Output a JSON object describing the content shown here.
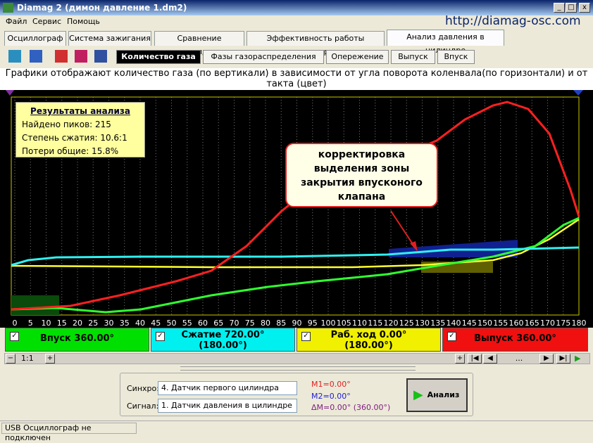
{
  "window": {
    "title": "Diamag 2 (димон давление 1.dm2)",
    "url": "http://diamag-osc.com"
  },
  "menu": [
    "Файл",
    "Сервис",
    "Помощь"
  ],
  "tabs": [
    "Осциллограф",
    "Система зажигания",
    "Сравнение цилиндров",
    "Эффективность работы цилиндров",
    "Анализ давления в цилиндре"
  ],
  "subtabs": [
    "Количество газа",
    "Фазы газораспределения",
    "Опережение",
    "Выпуск",
    "Впуск"
  ],
  "description": "Графики отображают количество газа (по вертикали) в зависимости от угла поворота коленвала(по горизонтали) и от такта (цвет)",
  "results": {
    "title": "Результаты анализа",
    "lines": [
      "Найдено пиков: 215",
      "Степень сжатия: 10.6:1",
      "Потери общие: 15.8%"
    ]
  },
  "callout": [
    "корректировка",
    "выделения зоны",
    "закрытия впусконого",
    "клапана"
  ],
  "xticks": [
    0,
    5,
    10,
    15,
    20,
    25,
    30,
    35,
    40,
    45,
    50,
    55,
    60,
    65,
    70,
    75,
    80,
    85,
    90,
    95,
    100,
    105,
    110,
    115,
    120,
    125,
    130,
    135,
    140,
    145,
    150,
    155,
    160,
    165,
    170,
    175,
    180
  ],
  "phases": [
    {
      "name": "Впуск 360.00°"
    },
    {
      "name": "Сжатие 720.00°",
      "sub": "(180.00°)"
    },
    {
      "name": "Раб. ход 0.00°",
      "sub": "(180.00°)"
    },
    {
      "name": "Выпуск 360.00°"
    }
  ],
  "scroll": {
    "zoom": "1:1",
    "position": "..."
  },
  "controls": {
    "sync_label": "Синхро:",
    "sync_value": "4.  Датчик первого цилиндра",
    "signal_label": "Сигнал:",
    "signal_value": "1.  Датчик давления в цилиндре",
    "m1": "M1=0.00°",
    "m2": "M2=0.00°",
    "dm": "ΔM=0.00° (360.00°)",
    "button": "Анализ"
  },
  "status": "USB Осциллограф не подключен"
}
